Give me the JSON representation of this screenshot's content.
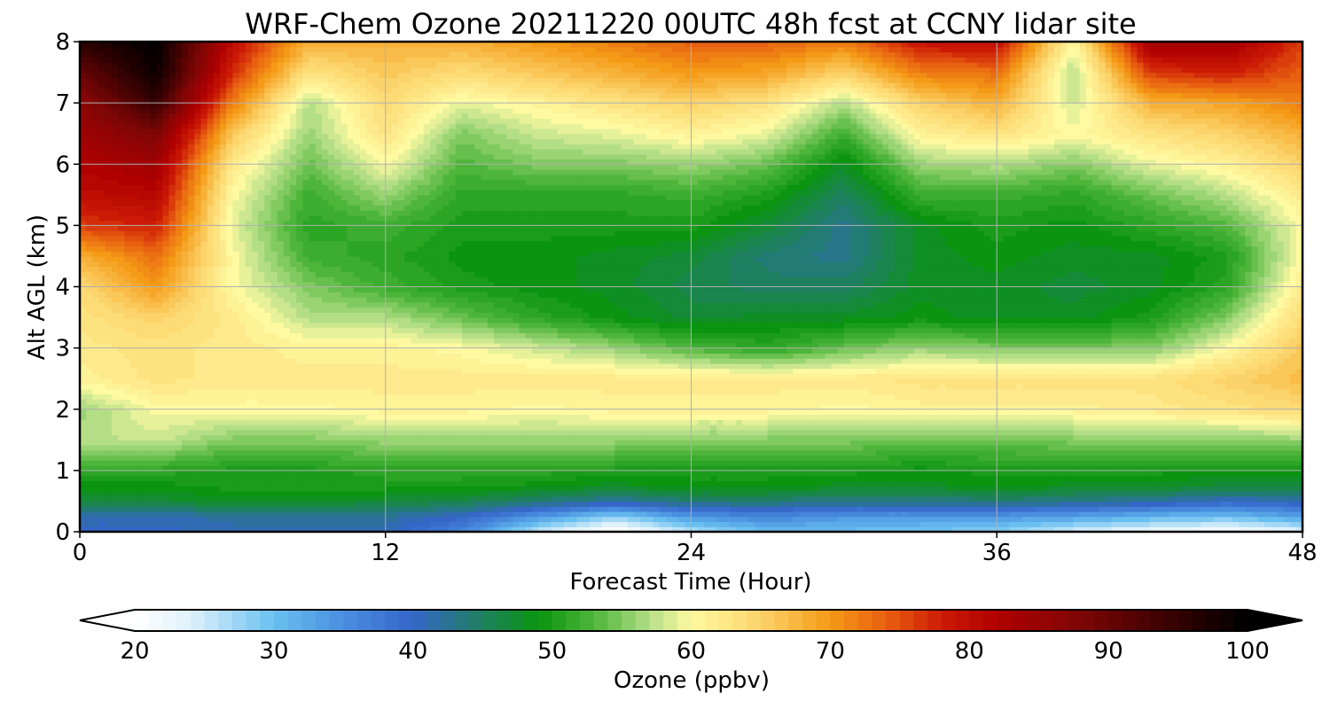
{
  "chart_data": {
    "type": "heatmap",
    "title": "WRF-Chem Ozone  20211220 00UTC 48h fcst at CCNY lidar site",
    "xlabel": "Forecast Time (Hour)",
    "ylabel": "Alt AGL (km)",
    "xlim": [
      0,
      48
    ],
    "ylim": [
      0,
      8
    ],
    "xticks": [
      0,
      12,
      24,
      36,
      48
    ],
    "yticks": [
      0,
      1,
      2,
      3,
      4,
      5,
      6,
      7,
      8
    ],
    "grid": true,
    "x": [
      0,
      3,
      6,
      9,
      12,
      15,
      18,
      21,
      24,
      27,
      30,
      33,
      36,
      39,
      42,
      45,
      48
    ],
    "y": [
      0,
      0.25,
      0.5,
      0.75,
      1,
      1.5,
      2,
      2.5,
      3,
      3.5,
      4,
      4.5,
      5,
      5.5,
      6,
      6.5,
      7,
      7.5,
      8
    ],
    "z": [
      [
        40,
        40,
        41,
        41,
        41,
        36,
        25,
        19,
        26,
        30,
        30,
        29,
        28,
        24,
        22,
        20,
        23
      ],
      [
        41,
        41,
        42,
        42,
        42,
        40,
        34,
        28,
        34,
        36,
        34,
        34,
        34,
        33,
        31,
        30,
        33
      ],
      [
        47,
        47,
        48,
        48,
        47,
        46,
        44,
        42,
        44,
        44,
        43,
        43,
        44,
        43,
        42,
        40,
        41
      ],
      [
        49,
        49,
        50,
        50,
        50,
        50,
        49,
        48,
        49,
        49,
        48,
        48,
        49,
        48,
        48,
        47,
        47
      ],
      [
        52,
        51,
        50,
        50,
        51,
        51,
        51,
        50,
        50,
        50,
        50,
        49,
        50,
        50,
        50,
        49,
        50
      ],
      [
        57,
        58,
        55,
        55,
        56,
        56,
        56,
        56,
        55,
        55,
        55,
        54,
        54,
        55,
        55,
        55,
        56
      ],
      [
        56,
        60,
        60,
        60,
        61,
        61,
        60,
        61,
        61,
        61,
        60,
        61,
        61,
        61,
        62,
        63,
        64
      ],
      [
        61,
        63,
        62,
        62,
        62,
        62,
        62,
        62,
        62,
        62,
        62,
        63,
        63,
        63,
        63,
        65,
        67
      ],
      [
        62,
        63,
        62,
        61,
        61,
        60,
        58,
        56,
        53,
        51,
        54,
        56,
        55,
        55,
        55,
        60,
        66
      ],
      [
        63,
        65,
        62,
        57,
        57,
        54,
        51,
        49,
        47,
        48,
        48,
        49,
        48,
        48,
        50,
        55,
        64
      ],
      [
        64,
        70,
        60,
        55,
        52,
        50,
        49,
        48,
        46,
        45,
        45,
        48,
        48,
        47,
        48,
        51,
        62
      ],
      [
        68,
        73,
        60,
        52,
        51,
        49,
        49,
        48,
        47,
        44,
        43,
        48,
        49,
        48,
        48,
        50,
        60
      ],
      [
        76,
        78,
        59,
        51,
        52,
        50,
        50,
        50,
        50,
        47,
        43,
        48,
        50,
        49,
        51,
        53,
        60
      ],
      [
        80,
        81,
        60,
        52,
        56,
        51,
        51,
        51,
        52,
        50,
        45,
        52,
        52,
        51,
        54,
        57,
        62
      ],
      [
        82,
        84,
        62,
        54,
        60,
        53,
        55,
        55,
        56,
        54,
        48,
        56,
        57,
        55,
        59,
        61,
        65
      ],
      [
        84,
        88,
        66,
        56,
        63,
        55,
        58,
        59,
        61,
        59,
        52,
        61,
        63,
        60,
        63,
        65,
        68
      ],
      [
        86,
        95,
        72,
        57,
        64,
        59,
        61,
        63,
        65,
        63,
        57,
        65,
        68,
        58,
        68,
        69,
        72
      ],
      [
        90,
        99,
        77,
        63,
        66,
        64,
        66,
        68,
        70,
        69,
        65,
        72,
        73,
        57,
        76,
        78,
        74
      ],
      [
        96,
        100,
        80,
        68,
        68,
        68,
        70,
        72,
        74,
        74,
        72,
        79,
        80,
        60,
        84,
        84,
        76
      ]
    ],
    "colorbar": {
      "min": 20,
      "max": 100,
      "ticks": [
        20,
        30,
        40,
        50,
        60,
        70,
        80,
        90,
        100
      ],
      "label": "Ozone  (ppbv)",
      "extend": "both",
      "stops": [
        {
          "v": 20,
          "c": "#ffffff"
        },
        {
          "v": 24,
          "c": "#dff1fc"
        },
        {
          "v": 30,
          "c": "#69c0f0"
        },
        {
          "v": 35,
          "c": "#4a8ee0"
        },
        {
          "v": 40,
          "c": "#3566c8"
        },
        {
          "v": 45,
          "c": "#1f8060"
        },
        {
          "v": 49,
          "c": "#0a9410"
        },
        {
          "v": 53,
          "c": "#4db53a"
        },
        {
          "v": 57,
          "c": "#b3de86"
        },
        {
          "v": 60,
          "c": "#fffaa2"
        },
        {
          "v": 65,
          "c": "#fcd36a"
        },
        {
          "v": 70,
          "c": "#f49a16"
        },
        {
          "v": 74,
          "c": "#e86010"
        },
        {
          "v": 78,
          "c": "#cc1a06"
        },
        {
          "v": 82,
          "c": "#b00000"
        },
        {
          "v": 88,
          "c": "#7e0606"
        },
        {
          "v": 94,
          "c": "#3e0202"
        },
        {
          "v": 100,
          "c": "#000000"
        }
      ]
    }
  }
}
